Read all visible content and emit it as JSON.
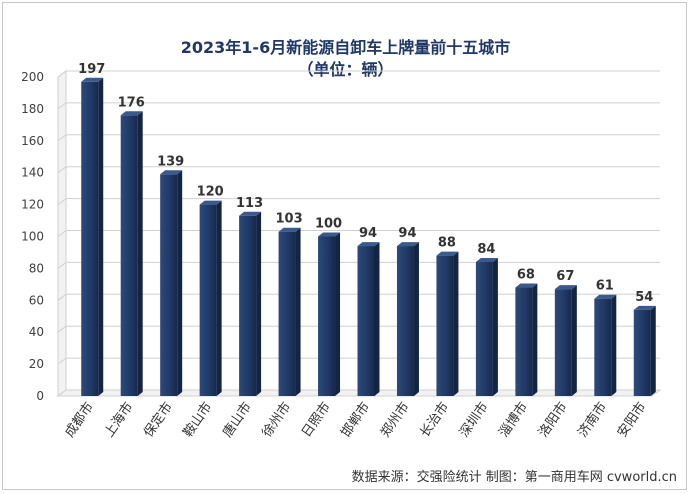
{
  "chart_data": {
    "type": "bar",
    "title": "2023年1-6月新能源自卸车上牌量前十五城市",
    "subtitle": "（单位：辆）",
    "categories": [
      "成都市",
      "上海市",
      "保定市",
      "鞍山市",
      "唐山市",
      "徐州市",
      "日照市",
      "邯郸市",
      "郑州市",
      "长治市",
      "深圳市",
      "淄博市",
      "洛阳市",
      "济南市",
      "安阳市"
    ],
    "values": [
      197,
      176,
      139,
      120,
      113,
      103,
      100,
      94,
      94,
      88,
      84,
      68,
      67,
      61,
      54
    ],
    "ylim": [
      0,
      200
    ],
    "yticks": [
      0,
      20,
      40,
      60,
      80,
      100,
      120,
      140,
      160,
      180,
      200
    ],
    "grid": true,
    "bar_color": "#1f3864"
  },
  "source_note": "数据来源：交强险统计 制图：第一商用车网 cvworld.cn"
}
